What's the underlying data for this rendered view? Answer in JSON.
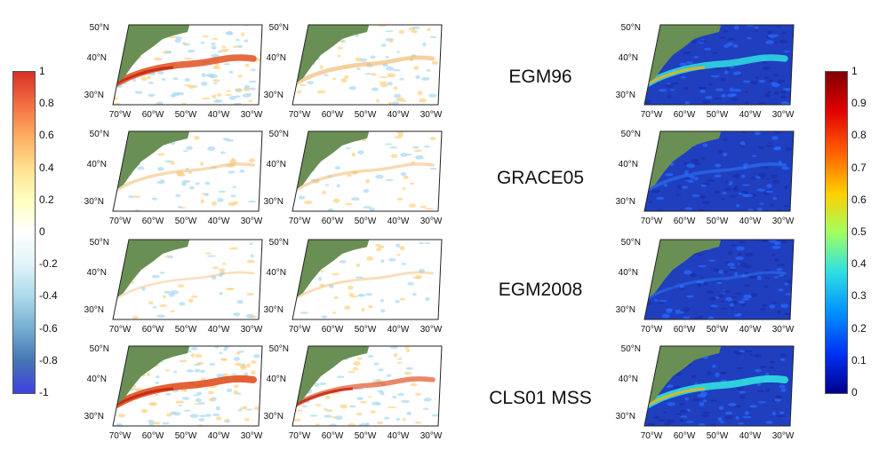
{
  "left_colorbar": {
    "ticks": [
      "1",
      "0.8",
      "0.6",
      "0.4",
      "0.2",
      "0",
      "-0.2",
      "-0.4",
      "-0.6",
      "-0.8",
      "-1"
    ],
    "colors": [
      "#d73027",
      "#f46d43",
      "#fdae61",
      "#fee090",
      "#ffffbf",
      "#ffffff",
      "#e0f3f8",
      "#abd9e9",
      "#74add1",
      "#4575b4",
      "#313695"
    ]
  },
  "right_colorbar": {
    "ticks": [
      "1",
      "0.9",
      "0.8",
      "0.7",
      "0.6",
      "0.5",
      "0.4",
      "0.3",
      "0.2",
      "0.1",
      "0"
    ],
    "colors": [
      "#7f0000",
      "#ff0000",
      "#ff7f00",
      "#ffff00",
      "#7fff7f",
      "#00ffff",
      "#007fff",
      "#0000ff",
      "#00008f"
    ]
  },
  "models": [
    "EGM96",
    "GRACE05",
    "EGM2008",
    "CLS01 MSS"
  ],
  "lat_labels": [
    "50°N",
    "40°N",
    "30°N"
  ],
  "lon_labels": [
    "70°W",
    "60°W",
    "50°W",
    "40°W",
    "30°W"
  ],
  "colors": {
    "land": "#6a8f55",
    "ocean_right": "#1f3fbf",
    "signal_warm": "#f07020",
    "signal_cool": "#60b0e0"
  },
  "panel_strength": [
    [
      0.9,
      0.45,
      0.9
    ],
    [
      0.25,
      0.25,
      0.3
    ],
    [
      0.1,
      0.15,
      0.2
    ],
    [
      1.0,
      0.6,
      1.0
    ]
  ]
}
